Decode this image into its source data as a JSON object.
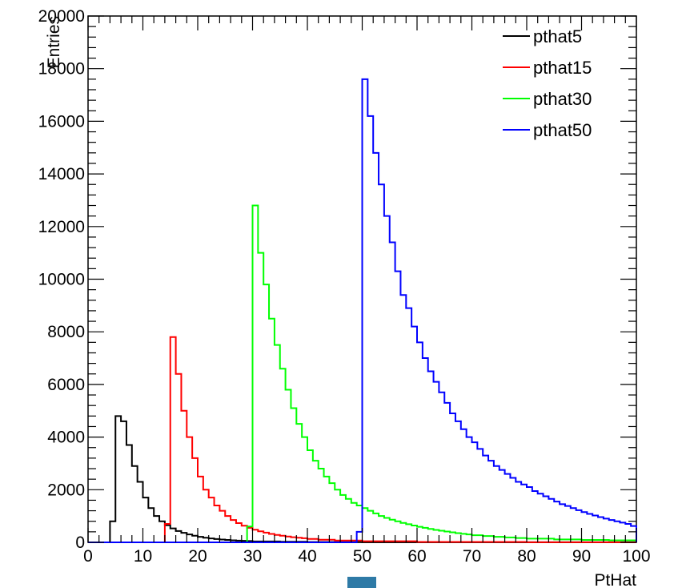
{
  "chart_data": {
    "type": "line",
    "style": "step-histogram",
    "xlabel": "PtHat",
    "ylabel": "Entries",
    "xlim": [
      0,
      100
    ],
    "ylim": [
      0,
      20000
    ],
    "bin_width": 1,
    "x_ticks": [
      0,
      10,
      20,
      30,
      40,
      50,
      60,
      70,
      80,
      90,
      100
    ],
    "y_ticks": [
      0,
      2000,
      4000,
      6000,
      8000,
      10000,
      12000,
      14000,
      16000,
      18000,
      20000
    ],
    "grid": false,
    "legend_position": "top-right",
    "series": [
      {
        "name": "pthat5",
        "color": "#000000",
        "bins": [
          [
            4,
            5,
            800
          ],
          [
            5,
            6,
            4800
          ],
          [
            6,
            7,
            4600
          ],
          [
            7,
            8,
            3700
          ],
          [
            8,
            9,
            2900
          ],
          [
            9,
            10,
            2300
          ],
          [
            10,
            11,
            1700
          ],
          [
            11,
            12,
            1300
          ],
          [
            12,
            13,
            1000
          ],
          [
            13,
            14,
            800
          ],
          [
            14,
            15,
            650
          ],
          [
            15,
            16,
            530
          ],
          [
            16,
            17,
            430
          ],
          [
            17,
            18,
            360
          ],
          [
            18,
            19,
            300
          ],
          [
            19,
            20,
            250
          ],
          [
            20,
            21,
            210
          ],
          [
            21,
            22,
            175
          ],
          [
            22,
            23,
            150
          ],
          [
            23,
            24,
            125
          ],
          [
            24,
            25,
            105
          ],
          [
            25,
            26,
            90
          ],
          [
            26,
            27,
            78
          ],
          [
            27,
            28,
            66
          ],
          [
            28,
            29,
            57
          ],
          [
            29,
            30,
            49
          ],
          [
            30,
            35,
            35
          ],
          [
            35,
            40,
            22
          ],
          [
            40,
            50,
            12
          ],
          [
            50,
            100,
            4
          ]
        ]
      },
      {
        "name": "pthat15",
        "color": "#ff0000",
        "bins": [
          [
            14,
            15,
            700
          ],
          [
            15,
            16,
            7800
          ],
          [
            16,
            17,
            6400
          ],
          [
            17,
            18,
            5000
          ],
          [
            18,
            19,
            4000
          ],
          [
            19,
            20,
            3200
          ],
          [
            20,
            21,
            2500
          ],
          [
            21,
            22,
            2000
          ],
          [
            22,
            23,
            1700
          ],
          [
            23,
            24,
            1400
          ],
          [
            24,
            25,
            1200
          ],
          [
            25,
            26,
            1000
          ],
          [
            26,
            27,
            850
          ],
          [
            27,
            28,
            730
          ],
          [
            28,
            29,
            630
          ],
          [
            29,
            30,
            550
          ],
          [
            30,
            31,
            480
          ],
          [
            31,
            32,
            420
          ],
          [
            32,
            33,
            370
          ],
          [
            33,
            34,
            320
          ],
          [
            34,
            35,
            280
          ],
          [
            35,
            36,
            250
          ],
          [
            36,
            37,
            220
          ],
          [
            37,
            38,
            195
          ],
          [
            38,
            39,
            175
          ],
          [
            39,
            40,
            155
          ],
          [
            40,
            42,
            130
          ],
          [
            42,
            45,
            100
          ],
          [
            45,
            50,
            70
          ],
          [
            50,
            60,
            40
          ],
          [
            60,
            80,
            15
          ],
          [
            80,
            100,
            5
          ]
        ]
      },
      {
        "name": "pthat30",
        "color": "#00ff00",
        "bins": [
          [
            29,
            30,
            600
          ],
          [
            30,
            31,
            12800
          ],
          [
            31,
            32,
            11000
          ],
          [
            32,
            33,
            9800
          ],
          [
            33,
            34,
            8500
          ],
          [
            34,
            35,
            7500
          ],
          [
            35,
            36,
            6600
          ],
          [
            36,
            37,
            5800
          ],
          [
            37,
            38,
            5100
          ],
          [
            38,
            39,
            4500
          ],
          [
            39,
            40,
            4000
          ],
          [
            40,
            41,
            3500
          ],
          [
            41,
            42,
            3100
          ],
          [
            42,
            43,
            2800
          ],
          [
            43,
            44,
            2500
          ],
          [
            44,
            45,
            2250
          ],
          [
            45,
            46,
            2000
          ],
          [
            46,
            47,
            1800
          ],
          [
            47,
            48,
            1650
          ],
          [
            48,
            49,
            1500
          ],
          [
            49,
            50,
            1400
          ],
          [
            50,
            51,
            1300
          ],
          [
            51,
            52,
            1200
          ],
          [
            52,
            53,
            1100
          ],
          [
            53,
            54,
            1000
          ],
          [
            54,
            55,
            930
          ],
          [
            55,
            56,
            860
          ],
          [
            56,
            57,
            800
          ],
          [
            57,
            58,
            740
          ],
          [
            58,
            59,
            690
          ],
          [
            59,
            60,
            640
          ],
          [
            60,
            61,
            590
          ],
          [
            61,
            62,
            550
          ],
          [
            62,
            63,
            510
          ],
          [
            63,
            64,
            470
          ],
          [
            64,
            65,
            440
          ],
          [
            65,
            66,
            410
          ],
          [
            66,
            67,
            380
          ],
          [
            67,
            68,
            350
          ],
          [
            68,
            69,
            325
          ],
          [
            69,
            70,
            300
          ],
          [
            70,
            72,
            270
          ],
          [
            72,
            74,
            240
          ],
          [
            74,
            76,
            210
          ],
          [
            76,
            78,
            185
          ],
          [
            78,
            80,
            165
          ],
          [
            80,
            85,
            140
          ],
          [
            85,
            90,
            110
          ],
          [
            90,
            95,
            90
          ],
          [
            95,
            100,
            75
          ]
        ]
      },
      {
        "name": "pthat50",
        "color": "#0000ff",
        "bins": [
          [
            49,
            50,
            400
          ],
          [
            50,
            51,
            17600
          ],
          [
            51,
            52,
            16200
          ],
          [
            52,
            53,
            14800
          ],
          [
            53,
            54,
            13600
          ],
          [
            54,
            55,
            12400
          ],
          [
            55,
            56,
            11400
          ],
          [
            56,
            57,
            10300
          ],
          [
            57,
            58,
            9400
          ],
          [
            58,
            59,
            8900
          ],
          [
            59,
            60,
            8200
          ],
          [
            60,
            61,
            7600
          ],
          [
            61,
            62,
            7000
          ],
          [
            62,
            63,
            6500
          ],
          [
            63,
            64,
            6100
          ],
          [
            64,
            65,
            5700
          ],
          [
            65,
            66,
            5300
          ],
          [
            66,
            67,
            4900
          ],
          [
            67,
            68,
            4600
          ],
          [
            68,
            69,
            4300
          ],
          [
            69,
            70,
            4000
          ],
          [
            70,
            71,
            3800
          ],
          [
            71,
            72,
            3550
          ],
          [
            72,
            73,
            3300
          ],
          [
            73,
            74,
            3100
          ],
          [
            74,
            75,
            2900
          ],
          [
            75,
            76,
            2750
          ],
          [
            76,
            77,
            2600
          ],
          [
            77,
            78,
            2450
          ],
          [
            78,
            79,
            2300
          ],
          [
            79,
            80,
            2200
          ],
          [
            80,
            81,
            2100
          ],
          [
            81,
            82,
            1950
          ],
          [
            82,
            83,
            1850
          ],
          [
            83,
            84,
            1750
          ],
          [
            84,
            85,
            1650
          ],
          [
            85,
            86,
            1550
          ],
          [
            86,
            87,
            1450
          ],
          [
            87,
            88,
            1380
          ],
          [
            88,
            89,
            1300
          ],
          [
            89,
            90,
            1220
          ],
          [
            90,
            91,
            1150
          ],
          [
            91,
            92,
            1080
          ],
          [
            92,
            93,
            1020
          ],
          [
            93,
            94,
            960
          ],
          [
            94,
            95,
            900
          ],
          [
            95,
            96,
            850
          ],
          [
            96,
            97,
            800
          ],
          [
            97,
            98,
            750
          ],
          [
            98,
            99,
            700
          ],
          [
            99,
            100,
            620
          ]
        ]
      }
    ]
  }
}
